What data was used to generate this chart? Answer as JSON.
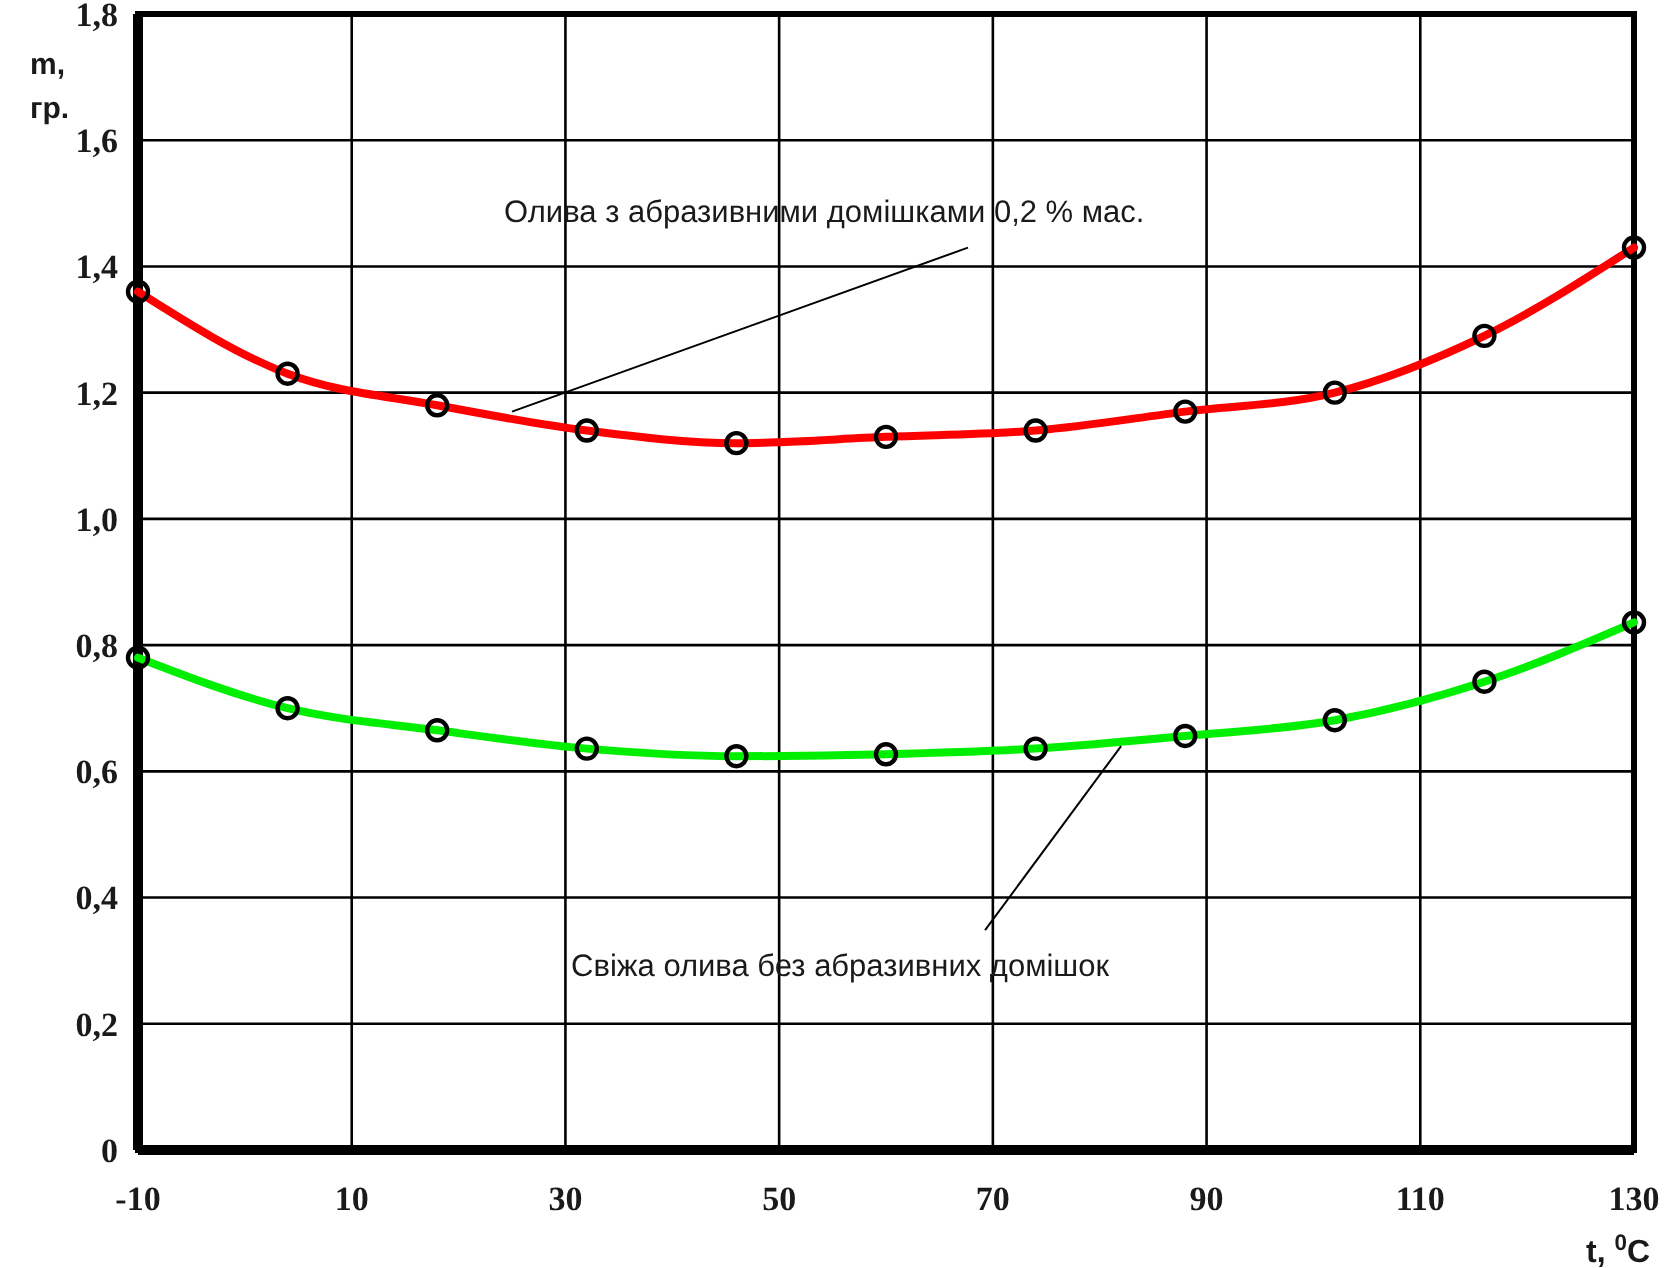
{
  "chart_data": {
    "type": "line",
    "xlabel": "t, $^{0}$C",
    "ylabel": "m, гр.",
    "x": [
      -10,
      4,
      18,
      32,
      46,
      60,
      74,
      88,
      102,
      116,
      130
    ],
    "series": [
      {
        "color": "#ff0000",
        "values": [
          1.36,
          1.23,
          1.18,
          1.14,
          1.12,
          1.13,
          1.14,
          1.17,
          1.2,
          1.29,
          1.43
        ]
      },
      {
        "color": "#00ee00",
        "values": [
          0.78,
          0.7,
          0.665,
          0.636,
          0.624,
          0.627,
          0.636,
          0.656,
          0.681,
          0.742,
          0.836
        ]
      }
    ],
    "xlim": [
      -10,
      130
    ],
    "xticks": [
      -10,
      10,
      30,
      50,
      70,
      90,
      110,
      130
    ],
    "ylim": [
      0,
      1.8
    ],
    "yticks": [
      0,
      {
        "value": 0.2,
        "label": "0,2"
      },
      {
        "value": 0.4,
        "label": "0,4"
      },
      {
        "value": 0.6,
        "label": "0,6"
      },
      {
        "value": 0.8,
        "label": "0,8"
      },
      {
        "value": 1.0,
        "label": "1,0"
      },
      {
        "value": 1.2,
        "label": "1,2"
      },
      {
        "value": 1.4,
        "label": "1,4"
      },
      {
        "value": 1.6,
        "label": "1,6"
      },
      {
        "value": 1.8,
        "label": "1,8"
      }
    ],
    "grid": true,
    "marker": "circle",
    "line_style": "solid",
    "annotations": [
      {
        "text": "Олива з абразивними домішками 0,2 % мас.",
        "x": 25,
        "y": 1.17
      },
      {
        "text": "Свіжа олива без абразивних домішок",
        "x": 82,
        "y": 0.64
      }
    ]
  }
}
